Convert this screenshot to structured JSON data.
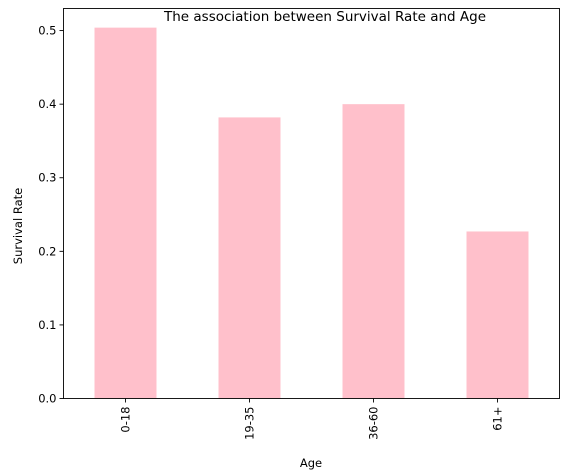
{
  "chart_data": {
    "type": "bar",
    "title": "The association between Survival Rate and Age",
    "xlabel": "Age",
    "ylabel": "Survival Rate",
    "categories": [
      "0-18",
      "19-35",
      "36-60",
      "61+"
    ],
    "values": [
      0.504,
      0.382,
      0.4,
      0.227
    ],
    "ylim": [
      0,
      0.53
    ],
    "yticks": [
      0.0,
      0.1,
      0.2,
      0.3,
      0.4,
      0.5
    ],
    "ytick_labels": [
      "0.0",
      "0.1",
      "0.2",
      "0.3",
      "0.4",
      "0.5"
    ],
    "bar_color": "#ffc0cb",
    "grid": false,
    "legend": "none",
    "xtick_rotation": "vertical"
  }
}
